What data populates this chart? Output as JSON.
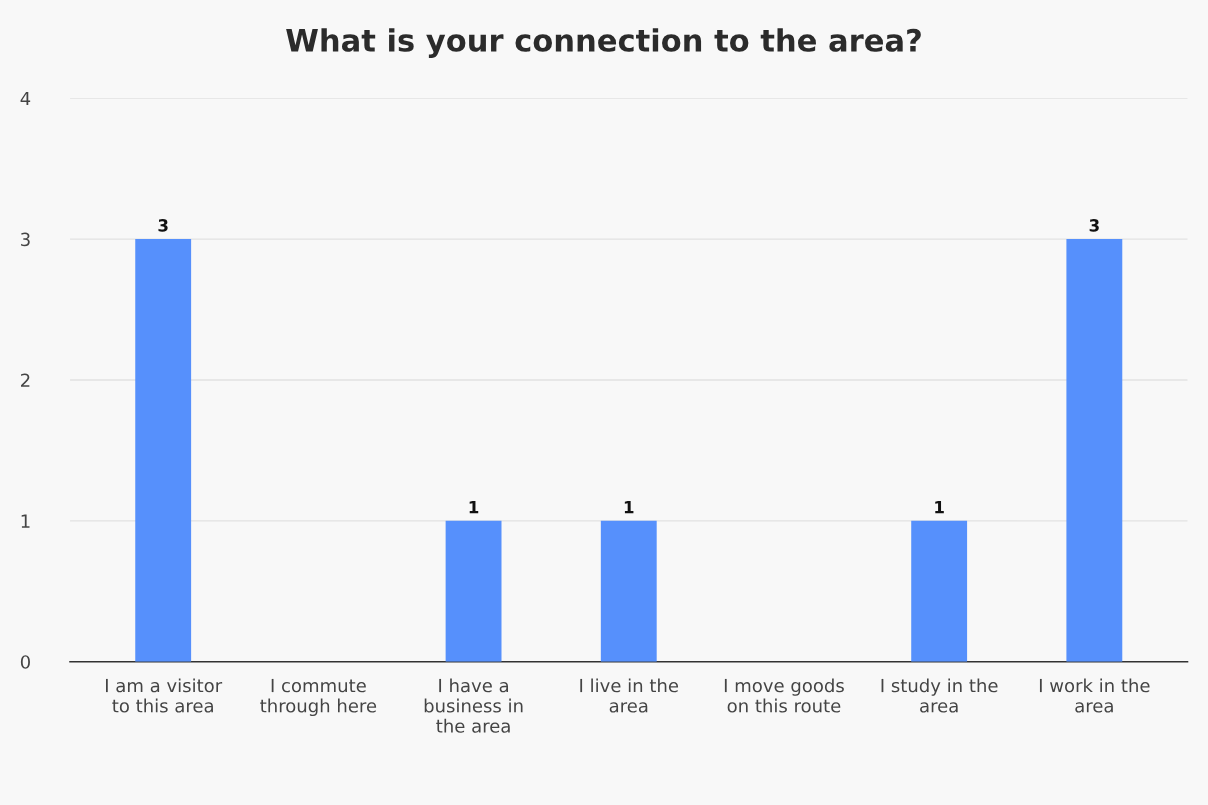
{
  "chart_data": {
    "type": "bar",
    "title": "What is your connection to the area?",
    "categories": [
      "I am a visitor\nto this area",
      "I commute\nthrough here",
      "I have a\nbusiness in\nthe area",
      "I live in the\narea",
      "I move goods\non this route",
      "I study in the\narea",
      "I work in the\narea"
    ],
    "values": [
      3,
      0,
      1,
      1,
      0,
      1,
      3
    ],
    "value_labels": [
      "3",
      null,
      "1",
      "1",
      null,
      "1",
      "3"
    ],
    "color": "#5690fc",
    "ylim": [
      0,
      4
    ],
    "yticks": [
      0,
      1,
      2,
      3,
      4
    ],
    "grid": "y"
  }
}
